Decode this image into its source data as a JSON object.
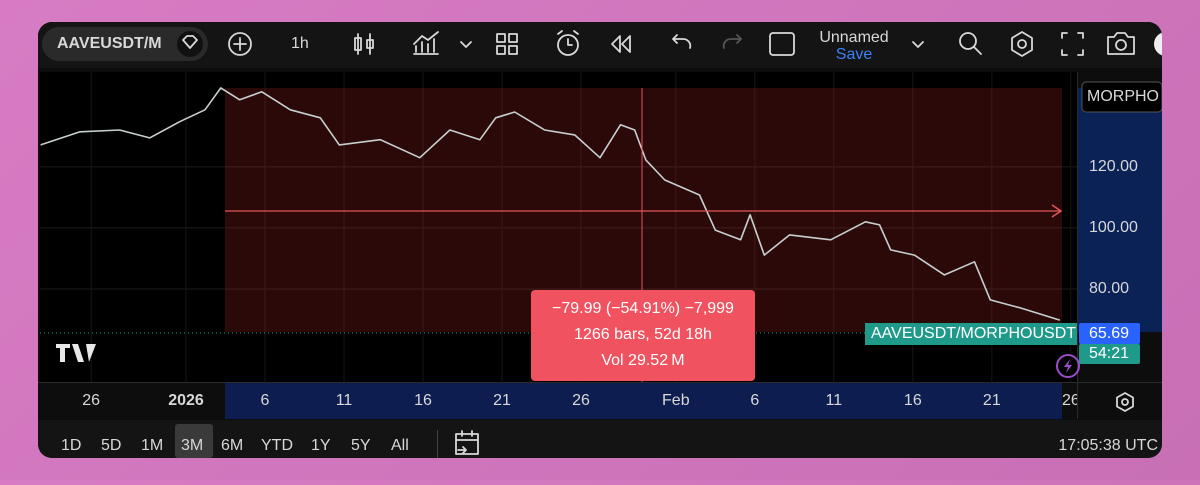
{
  "toolbar": {
    "symbol": "AAVEUSDT/M",
    "interval": "1h",
    "layout_name": "Unnamed",
    "save": "Save"
  },
  "chart_data": {
    "type": "line",
    "xlim": [
      -9.24,
      56.39
    ],
    "ylim": [
      49.5,
      151.1
    ],
    "xticks": [
      {
        "value": -6,
        "label": "26"
      },
      {
        "value": 0,
        "label": "2026"
      },
      {
        "value": 5,
        "label": "6"
      },
      {
        "value": 10,
        "label": "11"
      },
      {
        "value": 15,
        "label": "16"
      },
      {
        "value": 20,
        "label": "21"
      },
      {
        "value": 25,
        "label": "26"
      },
      {
        "value": 31,
        "label": "Feb"
      },
      {
        "value": 36,
        "label": "6"
      },
      {
        "value": 41,
        "label": "11"
      },
      {
        "value": 46,
        "label": "16"
      },
      {
        "value": 51,
        "label": "21"
      },
      {
        "value": 56,
        "label": "26"
      }
    ],
    "yticks": [
      {
        "value": 120,
        "label": "120.00"
      },
      {
        "value": 100,
        "label": "100.00"
      },
      {
        "value": 80,
        "label": "80.00"
      }
    ],
    "grid": true,
    "series": [
      {
        "name": "AAVEUSDT/MORPHOUSDT",
        "color": "#c7cfcf",
        "x": [
          -9.2,
          -6.7,
          -4.2,
          -2.3,
          -0.4,
          1.2,
          2.2,
          3.4,
          4.8,
          6.6,
          8.5,
          9.7,
          12.3,
          14.8,
          16.7,
          18.6,
          19.6,
          20.8,
          22.7,
          24.6,
          26.2,
          27.5,
          28.4,
          29.1,
          30.3,
          32.5,
          33.5,
          35.1,
          35.7,
          36.6,
          38.2,
          40.8,
          43.0,
          43.9,
          44.6,
          46.1,
          48.0,
          49.9,
          50.9,
          52.8,
          55.3
        ],
        "values": [
          127.2,
          131.5,
          132.1,
          129.5,
          134.8,
          138.7,
          145.9,
          142.0,
          144.6,
          138.7,
          136.1,
          127.2,
          128.9,
          123.0,
          132.1,
          128.9,
          136.1,
          138.0,
          132.1,
          130.5,
          123.0,
          133.8,
          132.1,
          122.3,
          115.7,
          110.8,
          99.3,
          96.1,
          104.3,
          91.1,
          97.7,
          96.1,
          102.0,
          101.0,
          92.8,
          91.1,
          84.6,
          88.9,
          76.4,
          73.8,
          69.8
        ]
      }
    ],
    "last_price": 65.69,
    "countdown": "54:21",
    "compare_symbol": "MORPHO",
    "measure": {
      "line1": "−79.99 (−54.91%) −7,999",
      "line2": "1266 bars, 52d 18h",
      "line3": "Vol 29.52 M"
    }
  },
  "bottom_bar": {
    "ranges": [
      "1D",
      "5D",
      "1M",
      "3M",
      "6M",
      "YTD",
      "1Y",
      "5Y",
      "All"
    ],
    "clock": "17:05:38 UTC"
  }
}
